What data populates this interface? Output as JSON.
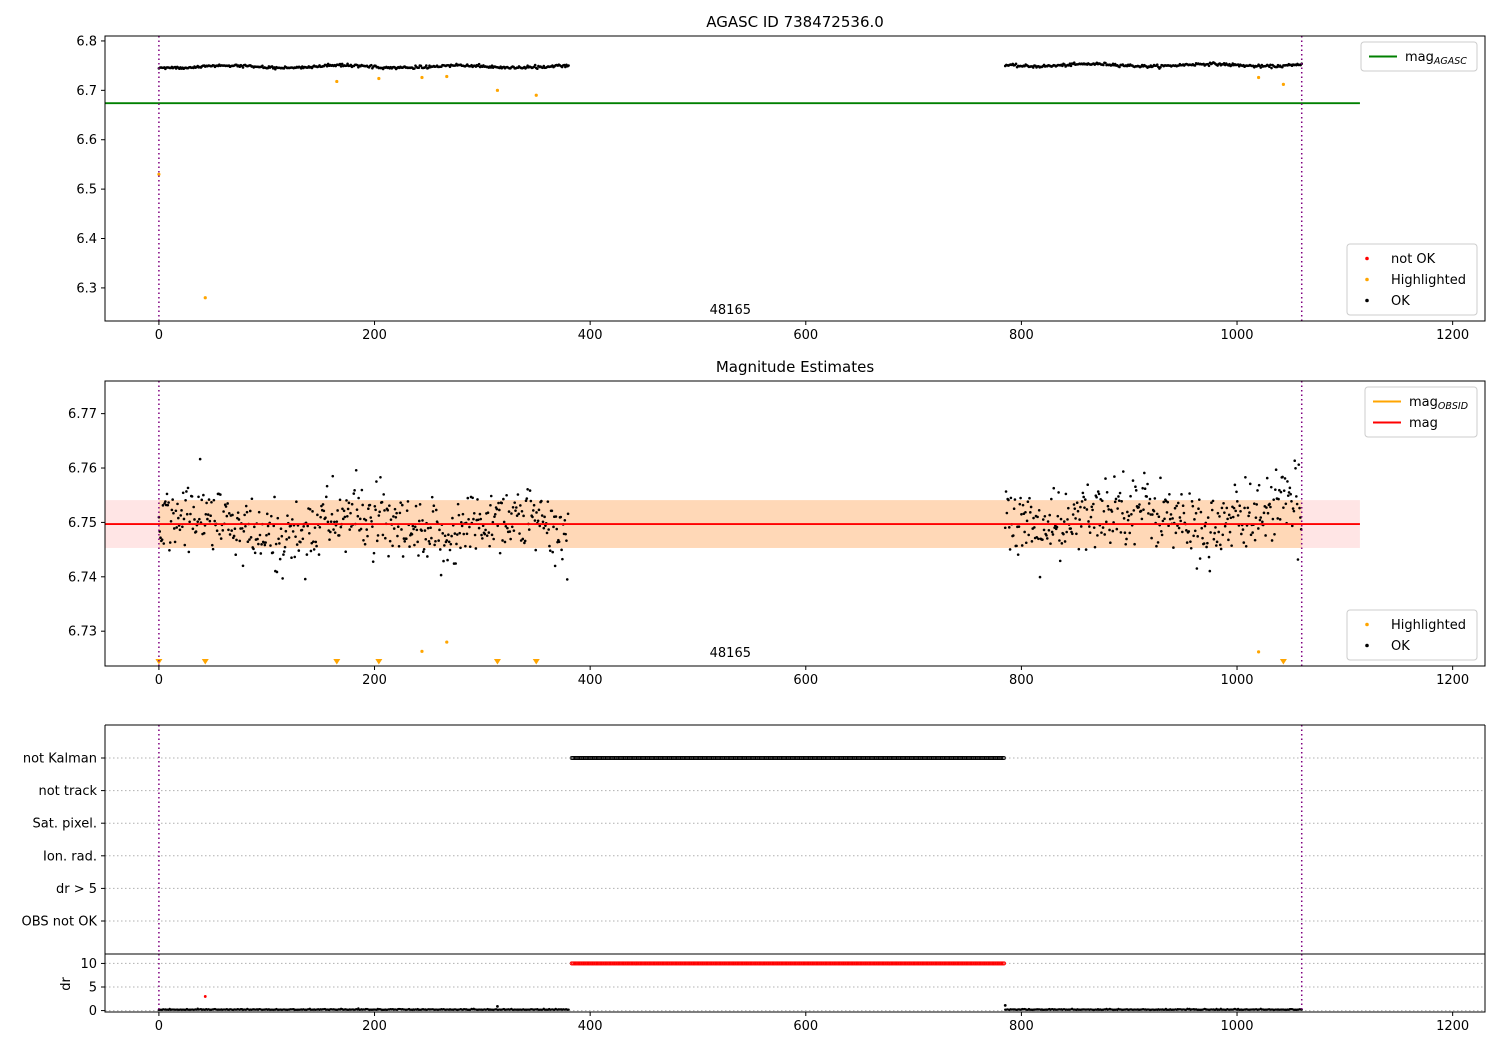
{
  "chart_data": [
    {
      "type": "scatter",
      "title": "AGASC ID 738472536.0",
      "xlim": [
        -50,
        1230
      ],
      "ylim": [
        6.233,
        6.81
      ],
      "xticks": [
        "0",
        "200",
        "400",
        "600",
        "800",
        "1000",
        "1200"
      ],
      "yticks": [
        "6.3",
        "6.4",
        "6.5",
        "6.6",
        "6.7",
        "6.8"
      ],
      "grid": false,
      "legend_upper": {
        "placement": "top-right",
        "entries": [
          {
            "label": "mag",
            "sub": "AGASC",
            "color": "#008000",
            "kind": "line"
          }
        ]
      },
      "legend_lower": {
        "placement": "bottom-right",
        "entries": [
          {
            "label": "not OK",
            "color": "#ff0000",
            "kind": "dot"
          },
          {
            "label": "Highlighted",
            "color": "#ffa500",
            "kind": "dot"
          },
          {
            "label": "OK",
            "color": "#000000",
            "kind": "dot"
          }
        ]
      },
      "obsid_label": {
        "text": "48165",
        "x": 530,
        "y": 6.255
      },
      "vlines_x": [
        0,
        1060
      ],
      "agasc_mag": {
        "value": 6.674,
        "x": [
          -50,
          1114
        ]
      },
      "ok_segments": [
        {
          "x": [
            0,
            380
          ],
          "base": 6.748,
          "amp": 0.004
        },
        {
          "x": [
            785,
            1060
          ],
          "base": 6.751,
          "amp": 0.004
        }
      ],
      "highlighted_points": [
        {
          "x": 0,
          "y": 6.53
        },
        {
          "x": 43,
          "y": 6.28
        },
        {
          "x": 165,
          "y": 6.718
        },
        {
          "x": 204,
          "y": 6.724
        },
        {
          "x": 244,
          "y": 6.726
        },
        {
          "x": 267,
          "y": 6.728
        },
        {
          "x": 314,
          "y": 6.7
        },
        {
          "x": 350,
          "y": 6.69
        },
        {
          "x": 1020,
          "y": 6.726
        },
        {
          "x": 1043,
          "y": 6.712
        }
      ]
    },
    {
      "type": "scatter",
      "title": "Magnitude Estimates",
      "xlim": [
        -50,
        1230
      ],
      "ylim": [
        6.7236,
        6.776
      ],
      "xticks": [
        "0",
        "200",
        "400",
        "600",
        "800",
        "1000",
        "1200"
      ],
      "yticks": [
        "6.73",
        "6.74",
        "6.75",
        "6.76",
        "6.77"
      ],
      "grid": false,
      "legend_upper": {
        "placement": "top-right",
        "entries": [
          {
            "label": "mag",
            "sub": "OBSID",
            "color": "#ffa500",
            "kind": "line"
          },
          {
            "label": "mag",
            "sub": "",
            "color": "#ff0000",
            "kind": "line"
          }
        ]
      },
      "legend_lower": {
        "placement": "bottom-right",
        "entries": [
          {
            "label": "Highlighted",
            "color": "#ffa500",
            "kind": "dot"
          },
          {
            "label": "OK",
            "color": "#000000",
            "kind": "dot"
          }
        ]
      },
      "obsid_label": {
        "text": "48165",
        "x": 530,
        "y": 6.7245
      },
      "vlines_x": [
        0,
        1060
      ],
      "mag": {
        "value": 6.7497,
        "x": [
          -50,
          1114
        ]
      },
      "mag_band": {
        "low": 6.7453,
        "high": 6.7541,
        "x": [
          -50,
          1114
        ]
      },
      "obsid_band": {
        "low": 6.7453,
        "high": 6.7541,
        "x": [
          0,
          1060
        ]
      },
      "ok_segments": [
        {
          "x": [
            0,
            380
          ],
          "base": 6.749,
          "sd": 0.004
        },
        {
          "x": [
            785,
            1060
          ],
          "base": 6.751,
          "sd": 0.004
        }
      ],
      "highlighted_points": [
        {
          "x": 244,
          "y": 6.7263
        },
        {
          "x": 267,
          "y": 6.728
        },
        {
          "x": 1020,
          "y": 6.7262
        }
      ],
      "clipped_markers_x": [
        0,
        43,
        165,
        204,
        314,
        350,
        1043
      ]
    },
    {
      "type": "scatter",
      "title": "",
      "xlim": [
        -50,
        1230
      ],
      "ylim": [
        -0.5,
        6.5
      ],
      "xticks": [
        "0",
        "200",
        "400",
        "600",
        "800",
        "1000",
        "1200"
      ],
      "ylabels": [
        "not Kalman",
        "not track",
        "Sat. pixel.",
        "Ion. rad.",
        "dr > 5",
        "OBS not OK"
      ],
      "grid": "dotted-horizontal",
      "vlines_x": [
        0,
        1060
      ],
      "flags": [
        {
          "label": "not Kalman",
          "x": [
            383,
            785
          ]
        }
      ]
    },
    {
      "type": "scatter",
      "title": "",
      "xlim": [
        -50,
        1230
      ],
      "ylim": [
        -0.3,
        12
      ],
      "xticks": [
        "0",
        "200",
        "400",
        "600",
        "800",
        "1000",
        "1200"
      ],
      "yticks": [
        "0",
        "5",
        "10"
      ],
      "ylabel": "dr",
      "grid": "dotted-horizontal",
      "vlines_x": [
        0,
        1060
      ],
      "dr_ok_segments": [
        {
          "x": [
            0,
            380
          ],
          "y": 0.15
        },
        {
          "x": [
            785,
            1060
          ],
          "y": 0.15
        }
      ],
      "dr_not_ok": {
        "x": [
          383,
          785
        ],
        "y": 10
      },
      "dr_outliers": [
        {
          "x": 43,
          "y": 3.0,
          "color": "#ff0000"
        },
        {
          "x": 314,
          "y": 0.9,
          "color": "#000000"
        },
        {
          "x": 785,
          "y": 1.1,
          "color": "#000000"
        }
      ]
    }
  ]
}
